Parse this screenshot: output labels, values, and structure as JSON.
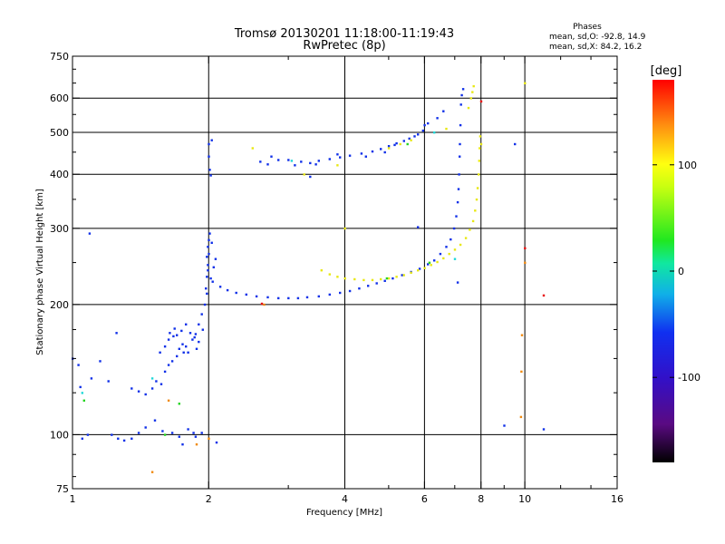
{
  "chart_data": {
    "type": "scatter",
    "title": "Tromsø 20130201 11:18:00-11:19:43",
    "subtitle": "RwPretec (8p)",
    "xlabel": "Frequency [MHz]",
    "ylabel": "Stationary phase Virtual Height [km]",
    "x_scale": "log",
    "y_scale": "log",
    "xlim": [
      1,
      16
    ],
    "ylim": [
      75,
      750
    ],
    "xticks": [
      1,
      2,
      4,
      6,
      8,
      10,
      16
    ],
    "xtick_labels": [
      "1",
      "2",
      "4",
      "6",
      "8",
      "10",
      "16"
    ],
    "yticks": [
      75,
      100,
      200,
      300,
      400,
      500,
      600,
      750
    ],
    "ytick_labels": [
      "75",
      "100",
      "200",
      "300",
      "400",
      "500",
      "600",
      "750"
    ],
    "x_minor_ticks": [
      3,
      5,
      7,
      9,
      12,
      14
    ],
    "y_minor_ticks": [
      80,
      90,
      125,
      150,
      175,
      250,
      350,
      450,
      550,
      650,
      700
    ],
    "grid_x": [
      2,
      4,
      6,
      8,
      10
    ],
    "grid_y": [
      100,
      200,
      300,
      400,
      500,
      600
    ],
    "phase_stats": {
      "heading": "Phases",
      "line_o": "mean, sd,O: -92.8, 14.9",
      "line_x": "mean, sd,X:  84.2, 16.2"
    },
    "colorbar": {
      "label": "[deg]",
      "ticks": [
        100,
        0,
        -100
      ],
      "tick_labels": [
        "100",
        "0",
        "-100"
      ],
      "range": [
        -180,
        180
      ],
      "colormap": "rainbow (black-purple-blue-cyan-green-yellow-orange-red)"
    },
    "series": [
      {
        "color": "#1030e8",
        "points": [
          [
            1.05,
            98
          ],
          [
            1.08,
            100
          ],
          [
            1.22,
            100
          ],
          [
            1.26,
            98
          ],
          [
            1.3,
            97
          ],
          [
            1.35,
            98
          ],
          [
            1.4,
            101
          ],
          [
            1.45,
            104
          ],
          [
            1.52,
            108
          ],
          [
            1.58,
            102
          ],
          [
            1.66,
            101
          ],
          [
            1.72,
            99
          ],
          [
            1.8,
            103
          ],
          [
            1.87,
            99
          ],
          [
            1.93,
            101
          ],
          [
            1.04,
            129
          ],
          [
            1.1,
            135
          ],
          [
            1.2,
            133
          ],
          [
            1.35,
            128
          ],
          [
            1.4,
            126
          ],
          [
            1.45,
            124
          ],
          [
            1.5,
            128
          ],
          [
            1.53,
            133
          ],
          [
            1.57,
            131
          ],
          [
            1.6,
            140
          ],
          [
            1.63,
            145
          ],
          [
            1.66,
            148
          ],
          [
            1.7,
            152
          ],
          [
            1.72,
            158
          ],
          [
            1.75,
            162
          ],
          [
            1.78,
            160
          ],
          [
            1.8,
            155
          ],
          [
            1.84,
            166
          ],
          [
            1.87,
            171
          ],
          [
            1.9,
            180
          ],
          [
            1.93,
            190
          ],
          [
            1.96,
            200
          ],
          [
            1.98,
            212
          ],
          [
            1.56,
            155
          ],
          [
            1.6,
            160
          ],
          [
            1.64,
            172
          ],
          [
            1.68,
            176
          ],
          [
            1.7,
            170
          ],
          [
            1.74,
            174
          ],
          [
            1.78,
            180
          ],
          [
            1.82,
            172
          ],
          [
            1.86,
            168
          ],
          [
            1.9,
            164
          ],
          [
            1.63,
            166
          ],
          [
            1.67,
            169
          ],
          [
            1.76,
            155
          ],
          [
            1.88,
            158
          ],
          [
            1.94,
            175
          ],
          [
            1.97,
            218
          ],
          [
            1.98,
            232
          ],
          [
            1.99,
            247
          ],
          [
            2.0,
            262
          ],
          [
            2.0,
            282
          ],
          [
            1.99,
            272
          ],
          [
            1.98,
            258
          ],
          [
            1.99,
            240
          ],
          [
            2.02,
            230
          ],
          [
            2.05,
            244
          ],
          [
            2.07,
            255
          ],
          [
            2.03,
            278
          ],
          [
            2.01,
            292
          ],
          [
            2.04,
            226
          ],
          [
            2.12,
            220
          ],
          [
            2.2,
            216
          ],
          [
            2.3,
            213
          ],
          [
            2.42,
            211
          ],
          [
            2.55,
            209
          ],
          [
            2.7,
            208
          ],
          [
            2.85,
            207
          ],
          [
            3.0,
            207
          ],
          [
            3.15,
            207
          ],
          [
            3.3,
            208
          ],
          [
            3.5,
            209
          ],
          [
            3.7,
            211
          ],
          [
            3.9,
            213
          ],
          [
            4.1,
            215
          ],
          [
            4.3,
            218
          ],
          [
            4.5,
            221
          ],
          [
            4.7,
            224
          ],
          [
            4.9,
            227
          ],
          [
            5.1,
            230
          ],
          [
            5.35,
            234
          ],
          [
            5.6,
            238
          ],
          [
            5.85,
            242
          ],
          [
            6.1,
            248
          ],
          [
            6.3,
            253
          ],
          [
            6.5,
            262
          ],
          [
            6.7,
            272
          ],
          [
            6.85,
            283
          ],
          [
            6.97,
            300
          ],
          [
            7.05,
            320
          ],
          [
            7.1,
            345
          ],
          [
            7.13,
            370
          ],
          [
            7.15,
            400
          ],
          [
            7.17,
            440
          ],
          [
            7.18,
            470
          ],
          [
            7.2,
            520
          ],
          [
            7.22,
            580
          ],
          [
            7.25,
            610
          ],
          [
            7.3,
            630
          ],
          [
            2.0,
            440
          ],
          [
            2.01,
            410
          ],
          [
            2.0,
            470
          ],
          [
            2.02,
            398
          ],
          [
            2.03,
            480
          ],
          [
            2.75,
            440
          ],
          [
            2.85,
            432
          ],
          [
            3.0,
            432
          ],
          [
            3.2,
            428
          ],
          [
            3.35,
            425
          ],
          [
            3.5,
            430
          ],
          [
            3.7,
            434
          ],
          [
            3.9,
            438
          ],
          [
            4.1,
            442
          ],
          [
            4.35,
            447
          ],
          [
            4.6,
            452
          ],
          [
            4.8,
            458
          ],
          [
            5.0,
            465
          ],
          [
            5.2,
            472
          ],
          [
            5.4,
            478
          ],
          [
            5.55,
            484
          ],
          [
            5.7,
            490
          ],
          [
            5.8,
            495
          ],
          [
            5.95,
            505
          ],
          [
            2.6,
            428
          ],
          [
            2.7,
            422
          ],
          [
            3.1,
            420
          ],
          [
            3.45,
            422
          ],
          [
            3.85,
            445
          ],
          [
            4.45,
            440
          ],
          [
            4.9,
            450
          ],
          [
            5.15,
            468
          ],
          [
            6.0,
            520
          ],
          [
            6.1,
            525
          ],
          [
            6.4,
            540
          ],
          [
            6.6,
            560
          ],
          [
            1.03,
            145
          ],
          [
            1.15,
            148
          ],
          [
            1.25,
            172
          ],
          [
            1.0,
            150
          ],
          [
            1.09,
            292
          ],
          [
            1.75,
            95
          ],
          [
            1.85,
            101
          ],
          [
            2.08,
            96
          ],
          [
            3.35,
            395
          ],
          [
            5.8,
            302
          ],
          [
            7.1,
            225
          ],
          [
            9.0,
            105
          ],
          [
            11.0,
            103
          ],
          [
            9.5,
            470
          ]
        ]
      },
      {
        "color": "#e8e814",
        "points": [
          [
            3.55,
            240
          ],
          [
            3.7,
            235
          ],
          [
            3.85,
            232
          ],
          [
            4.0,
            230
          ],
          [
            4.2,
            229
          ],
          [
            4.4,
            228
          ],
          [
            4.6,
            228
          ],
          [
            4.8,
            229
          ],
          [
            5.0,
            230
          ],
          [
            5.2,
            232
          ],
          [
            5.4,
            234
          ],
          [
            5.6,
            237
          ],
          [
            5.8,
            240
          ],
          [
            6.0,
            243
          ],
          [
            6.2,
            247
          ],
          [
            6.4,
            251
          ],
          [
            6.6,
            256
          ],
          [
            6.8,
            262
          ],
          [
            7.0,
            268
          ],
          [
            7.2,
            275
          ],
          [
            7.4,
            285
          ],
          [
            7.55,
            298
          ],
          [
            7.68,
            312
          ],
          [
            7.76,
            330
          ],
          [
            7.82,
            350
          ],
          [
            7.86,
            372
          ],
          [
            7.9,
            400
          ],
          [
            7.92,
            430
          ],
          [
            7.94,
            460
          ],
          [
            7.96,
            490
          ],
          [
            5.0,
            460
          ],
          [
            5.3,
            470
          ],
          [
            5.6,
            480
          ],
          [
            7.5,
            570
          ],
          [
            7.6,
            600
          ],
          [
            7.65,
            620
          ],
          [
            7.7,
            640
          ],
          [
            6.7,
            510
          ],
          [
            2.5,
            460
          ],
          [
            3.25,
            400
          ],
          [
            4.0,
            300
          ],
          [
            3.85,
            420
          ],
          [
            8.0,
            470
          ],
          [
            10.0,
            650
          ]
        ]
      },
      {
        "color": "#24d420",
        "points": [
          [
            1.06,
            120
          ],
          [
            1.72,
            118
          ],
          [
            4.95,
            230
          ],
          [
            6.15,
            250
          ],
          [
            5.5,
            470
          ],
          [
            1.6,
            100
          ]
        ]
      },
      {
        "color": "#20d8d8",
        "points": [
          [
            1.5,
            135
          ],
          [
            7.0,
            255
          ],
          [
            6.3,
            500
          ],
          [
            3.05,
            430
          ],
          [
            1.05,
            125
          ]
        ]
      },
      {
        "color": "#f08a10",
        "points": [
          [
            1.63,
            120
          ],
          [
            1.88,
            95
          ],
          [
            2.0,
            98
          ],
          [
            2.65,
            200
          ],
          [
            9.8,
            110
          ],
          [
            9.85,
            170
          ],
          [
            9.82,
            140
          ],
          [
            10.0,
            250
          ],
          [
            1.5,
            82
          ]
        ]
      },
      {
        "color": "#e81010",
        "points": [
          [
            2.62,
            201
          ],
          [
            10.0,
            270
          ],
          [
            11.0,
            210
          ],
          [
            8.0,
            590
          ]
        ]
      }
    ]
  }
}
